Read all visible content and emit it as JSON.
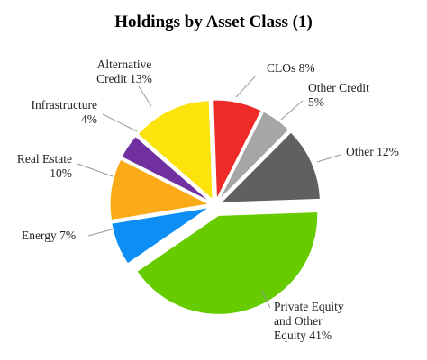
{
  "chart_data": {
    "type": "pie",
    "title": "Holdings by Asset Class (1)",
    "slices": [
      {
        "name": "CLOs",
        "value": 8,
        "label_lines": [
          "CLOs 8%"
        ],
        "color": "#ee2b29"
      },
      {
        "name": "Other Credit",
        "value": 5,
        "label_lines": [
          "Other Credit",
          "5%"
        ],
        "color": "#a6a6a6"
      },
      {
        "name": "Other",
        "value": 12,
        "label_lines": [
          "Other 12%"
        ],
        "color": "#606060"
      },
      {
        "name": "Private Equity and Other Equity",
        "value": 41,
        "label_lines": [
          "Private Equity",
          "and Other",
          "Equity 41%"
        ],
        "color": "#66cc00"
      },
      {
        "name": "Energy",
        "value": 7,
        "label_lines": [
          "Energy 7%"
        ],
        "color": "#0d8ef5"
      },
      {
        "name": "Real Estate",
        "value": 10,
        "label_lines": [
          "Real Estate",
          "10%"
        ],
        "color": "#fbab18"
      },
      {
        "name": "Infrastructure",
        "value": 4,
        "label_lines": [
          "Infrastructure",
          "4%"
        ],
        "color": "#7030a0"
      },
      {
        "name": "Alternative Credit",
        "value": 13,
        "label_lines": [
          "Alternative",
          "Credit 13%"
        ],
        "color": "#fde30c"
      }
    ],
    "start_category": "CLOs",
    "direction": "clockwise",
    "exploded": "all"
  }
}
